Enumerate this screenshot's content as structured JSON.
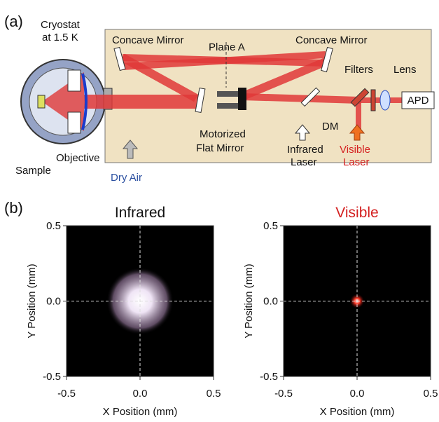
{
  "panel_a": {
    "label": "(a)",
    "cryostat": [
      "Cryostat",
      "at 1.5 K"
    ],
    "concave_mirror_left": "Concave Mirror",
    "plane_a": "Plane A",
    "concave_mirror_right": "Concave Mirror",
    "filters": "Filters",
    "lens": "Lens",
    "apd": "APD",
    "sample": "Sample",
    "objective": "Objective",
    "dry_air": "Dry Air",
    "motorized": [
      "Motorized",
      "Flat Mirror"
    ],
    "infrared_laser": [
      "Infrared",
      "Laser"
    ],
    "dm": "DM",
    "visible_laser": [
      "Visible",
      "Laser"
    ]
  },
  "panel_b": {
    "label": "(b)",
    "plots": [
      {
        "title": "Infrared",
        "title_color": "#111111",
        "spot_color": "#efe4f5",
        "xlabel": "X Position (mm)",
        "ylabel": "Y Position (mm)",
        "xlim": [
          -0.5,
          0.5
        ],
        "ylim": [
          -0.5,
          0.5
        ],
        "xticks": [
          -0.5,
          {
            "value": 0,
            "label": "0.0"
          },
          0.5
        ],
        "yticks": [
          -0.5,
          {
            "value": 0,
            "label": "0.0"
          },
          0.5
        ]
      },
      {
        "title": "Visible",
        "title_color": "#d42020",
        "spot_color": "#ff3a28",
        "xlabel": "X Position (mm)",
        "ylabel": "Y Position (mm)",
        "xlim": [
          -0.5,
          0.5
        ],
        "ylim": [
          -0.5,
          0.5
        ],
        "xticks": [
          -0.5,
          {
            "value": 0,
            "label": "0.0"
          },
          0.5
        ],
        "yticks": [
          -0.5,
          {
            "value": 0,
            "label": "0.0"
          },
          0.5
        ]
      }
    ]
  }
}
